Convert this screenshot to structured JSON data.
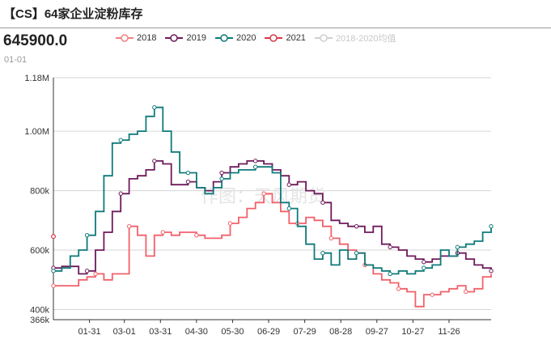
{
  "header": {
    "title": "【CS】64家企业淀粉库存",
    "current_value": "645900.0",
    "current_date": "01-01"
  },
  "watermark": "作图：天风期货",
  "legend": [
    {
      "name": "2018",
      "color": "#f08080",
      "muted": false
    },
    {
      "name": "2019",
      "color": "#6e1a5a",
      "muted": false
    },
    {
      "name": "2020",
      "color": "#0f7a7a",
      "muted": false
    },
    {
      "name": "2021",
      "color": "#d9384a",
      "muted": false
    },
    {
      "name": "2018-2020均值",
      "color": "#cfcfcf",
      "muted": true
    }
  ],
  "chart_data": {
    "type": "line",
    "title": "【CS】64家企业淀粉库存",
    "ylim": [
      366000,
      1180000
    ],
    "yticks": [
      {
        "v": 1180000,
        "label": "1.18M"
      },
      {
        "v": 1000000,
        "label": "1.00M"
      },
      {
        "v": 800000,
        "label": "800k"
      },
      {
        "v": 600000,
        "label": "600k"
      },
      {
        "v": 400000,
        "label": "400k"
      },
      {
        "v": 366000,
        "label": "366k"
      }
    ],
    "xrange": [
      1,
      365
    ],
    "xticks": [
      {
        "d": 31,
        "label": "01-31"
      },
      {
        "d": 60,
        "label": "03-01"
      },
      {
        "d": 90,
        "label": "03-31"
      },
      {
        "d": 120,
        "label": "04-30"
      },
      {
        "d": 150,
        "label": "05-30"
      },
      {
        "d": 180,
        "label": "06-29"
      },
      {
        "d": 210,
        "label": "07-29"
      },
      {
        "d": 240,
        "label": "08-28"
      },
      {
        "d": 270,
        "label": "09-27"
      },
      {
        "d": 300,
        "label": "10-27"
      },
      {
        "d": 330,
        "label": "11-26"
      }
    ],
    "series": [
      {
        "name": "2018",
        "color": "#f2606a",
        "points": [
          [
            1,
            480000
          ],
          [
            15,
            480000
          ],
          [
            22,
            500000
          ],
          [
            29,
            510000
          ],
          [
            36,
            520000
          ],
          [
            43,
            500000
          ],
          [
            50,
            520000
          ],
          [
            57,
            520000
          ],
          [
            64,
            680000
          ],
          [
            71,
            650000
          ],
          [
            78,
            580000
          ],
          [
            85,
            650000
          ],
          [
            92,
            660000
          ],
          [
            99,
            650000
          ],
          [
            106,
            660000
          ],
          [
            113,
            660000
          ],
          [
            120,
            650000
          ],
          [
            127,
            640000
          ],
          [
            134,
            640000
          ],
          [
            141,
            650000
          ],
          [
            148,
            690000
          ],
          [
            155,
            710000
          ],
          [
            162,
            740000
          ],
          [
            169,
            760000
          ],
          [
            176,
            790000
          ],
          [
            183,
            760000
          ],
          [
            190,
            730000
          ],
          [
            197,
            690000
          ],
          [
            204,
            690000
          ],
          [
            211,
            710000
          ],
          [
            218,
            700000
          ],
          [
            225,
            680000
          ],
          [
            232,
            640000
          ],
          [
            239,
            620000
          ],
          [
            246,
            600000
          ],
          [
            253,
            590000
          ],
          [
            260,
            550000
          ],
          [
            267,
            520000
          ],
          [
            274,
            500000
          ],
          [
            281,
            490000
          ],
          [
            288,
            470000
          ],
          [
            295,
            460000
          ],
          [
            302,
            410000
          ],
          [
            309,
            450000
          ],
          [
            316,
            450000
          ],
          [
            323,
            460000
          ],
          [
            330,
            470000
          ],
          [
            337,
            480000
          ],
          [
            344,
            460000
          ],
          [
            351,
            470000
          ],
          [
            358,
            510000
          ],
          [
            365,
            520000
          ]
        ]
      },
      {
        "name": "2019",
        "color": "#6e1a5a",
        "points": [
          [
            1,
            540000
          ],
          [
            8,
            545000
          ],
          [
            15,
            545000
          ],
          [
            22,
            520000
          ],
          [
            29,
            530000
          ],
          [
            36,
            600000
          ],
          [
            43,
            660000
          ],
          [
            50,
            730000
          ],
          [
            57,
            790000
          ],
          [
            64,
            840000
          ],
          [
            71,
            850000
          ],
          [
            78,
            870000
          ],
          [
            85,
            900000
          ],
          [
            92,
            890000
          ],
          [
            99,
            820000
          ],
          [
            106,
            820000
          ],
          [
            113,
            830000
          ],
          [
            120,
            810000
          ],
          [
            127,
            800000
          ],
          [
            134,
            830000
          ],
          [
            141,
            860000
          ],
          [
            148,
            880000
          ],
          [
            155,
            890000
          ],
          [
            162,
            900000
          ],
          [
            169,
            900000
          ],
          [
            176,
            890000
          ],
          [
            183,
            870000
          ],
          [
            190,
            850000
          ],
          [
            197,
            820000
          ],
          [
            204,
            830000
          ],
          [
            211,
            800000
          ],
          [
            218,
            790000
          ],
          [
            225,
            760000
          ],
          [
            232,
            700000
          ],
          [
            239,
            690000
          ],
          [
            246,
            680000
          ],
          [
            253,
            680000
          ],
          [
            260,
            660000
          ],
          [
            267,
            680000
          ],
          [
            274,
            620000
          ],
          [
            281,
            610000
          ],
          [
            288,
            600000
          ],
          [
            295,
            580000
          ],
          [
            302,
            570000
          ],
          [
            309,
            560000
          ],
          [
            316,
            570000
          ],
          [
            323,
            580000
          ],
          [
            330,
            580000
          ],
          [
            337,
            590000
          ],
          [
            344,
            570000
          ],
          [
            351,
            550000
          ],
          [
            358,
            540000
          ],
          [
            365,
            530000
          ]
        ]
      },
      {
        "name": "2020",
        "color": "#0f7a7a",
        "points": [
          [
            1,
            530000
          ],
          [
            8,
            540000
          ],
          [
            15,
            580000
          ],
          [
            22,
            600000
          ],
          [
            29,
            650000
          ],
          [
            36,
            730000
          ],
          [
            43,
            850000
          ],
          [
            50,
            960000
          ],
          [
            57,
            970000
          ],
          [
            64,
            990000
          ],
          [
            71,
            1000000
          ],
          [
            78,
            1050000
          ],
          [
            85,
            1080000
          ],
          [
            92,
            1000000
          ],
          [
            99,
            930000
          ],
          [
            106,
            860000
          ],
          [
            113,
            860000
          ],
          [
            120,
            810000
          ],
          [
            127,
            790000
          ],
          [
            134,
            810000
          ],
          [
            141,
            840000
          ],
          [
            148,
            860000
          ],
          [
            155,
            870000
          ],
          [
            162,
            870000
          ],
          [
            169,
            880000
          ],
          [
            176,
            880000
          ],
          [
            183,
            860000
          ],
          [
            190,
            760000
          ],
          [
            197,
            740000
          ],
          [
            204,
            680000
          ],
          [
            211,
            620000
          ],
          [
            218,
            570000
          ],
          [
            225,
            590000
          ],
          [
            232,
            550000
          ],
          [
            239,
            600000
          ],
          [
            246,
            570000
          ],
          [
            253,
            590000
          ],
          [
            260,
            550000
          ],
          [
            267,
            540000
          ],
          [
            274,
            530000
          ],
          [
            281,
            520000
          ],
          [
            288,
            530000
          ],
          [
            295,
            520000
          ],
          [
            302,
            530000
          ],
          [
            309,
            540000
          ],
          [
            316,
            550000
          ],
          [
            323,
            600000
          ],
          [
            330,
            580000
          ],
          [
            337,
            610000
          ],
          [
            344,
            620000
          ],
          [
            351,
            630000
          ],
          [
            358,
            660000
          ],
          [
            365,
            680000
          ]
        ]
      },
      {
        "name": "2021",
        "color": "#d9384a",
        "points": [
          [
            1,
            645900
          ]
        ]
      }
    ]
  }
}
